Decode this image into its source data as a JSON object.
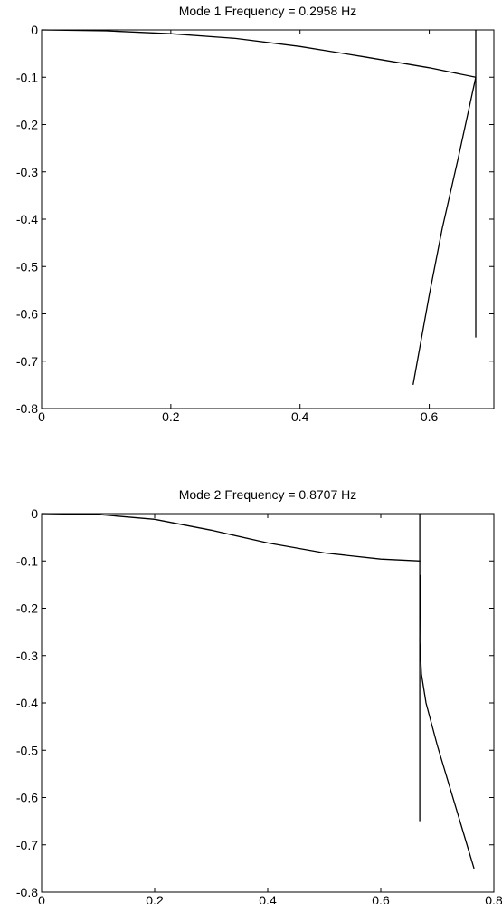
{
  "chart_data": [
    {
      "type": "line",
      "title": "Mode 1   Frequency = 0.2958 Hz",
      "xlabel": "",
      "ylabel": "",
      "xlim": [
        0,
        0.7
      ],
      "ylim": [
        -0.8,
        0
      ],
      "xticks": [
        0,
        0.2,
        0.4,
        0.6
      ],
      "xtick_labels": [
        "0",
        "0.2",
        "0.4",
        "0.6"
      ],
      "yticks": [
        0,
        -0.1,
        -0.2,
        -0.3,
        -0.4,
        -0.5,
        -0.6,
        -0.7,
        -0.8
      ],
      "ytick_labels": [
        "0",
        "-0.1",
        "-0.2",
        "-0.3",
        "-0.4",
        "-0.5",
        "-0.6",
        "-0.7",
        "-0.8"
      ],
      "grid": false,
      "series": [
        {
          "x": [
            0,
            0.1,
            0.2,
            0.3,
            0.4,
            0.5,
            0.6,
            0.672
          ],
          "y": [
            0,
            -0.002,
            -0.008,
            -0.018,
            -0.035,
            -0.057,
            -0.08,
            -0.1
          ]
        },
        {
          "x": [
            0.672,
            0.645,
            0.62,
            0.6,
            0.575
          ],
          "y": [
            -0.1,
            -0.27,
            -0.42,
            -0.56,
            -0.75
          ]
        },
        {
          "x": [
            0.672,
            0.672
          ],
          "y": [
            0,
            -0.65
          ]
        }
      ]
    },
    {
      "type": "line",
      "title": "Mode 2   Frequency = 0.8707 Hz",
      "xlabel": "",
      "ylabel": "",
      "xlim": [
        0,
        0.8
      ],
      "ylim": [
        -0.8,
        0
      ],
      "xticks": [
        0,
        0.2,
        0.4,
        0.6,
        0.8
      ],
      "xtick_labels": [
        "0",
        "0.2",
        "0.4",
        "0.6",
        "0.8"
      ],
      "yticks": [
        0,
        -0.1,
        -0.2,
        -0.3,
        -0.4,
        -0.5,
        -0.6,
        -0.7,
        -0.8
      ],
      "ytick_labels": [
        "0",
        "-0.1",
        "-0.2",
        "-0.3",
        "-0.4",
        "-0.5",
        "-0.6",
        "-0.7",
        "-0.8"
      ],
      "grid": false,
      "series": [
        {
          "x": [
            0,
            0.1,
            0.2,
            0.3,
            0.4,
            0.5,
            0.6,
            0.67
          ],
          "y": [
            0,
            -0.002,
            -0.012,
            -0.035,
            -0.062,
            -0.083,
            -0.096,
            -0.1
          ]
        },
        {
          "x": [
            0.67,
            0.669,
            0.672,
            0.68,
            0.7,
            0.72,
            0.74,
            0.765
          ],
          "y": [
            -0.13,
            -0.27,
            -0.34,
            -0.4,
            -0.49,
            -0.57,
            -0.65,
            -0.75
          ]
        },
        {
          "x": [
            0.669,
            0.669
          ],
          "y": [
            0,
            -0.65
          ]
        }
      ]
    }
  ]
}
